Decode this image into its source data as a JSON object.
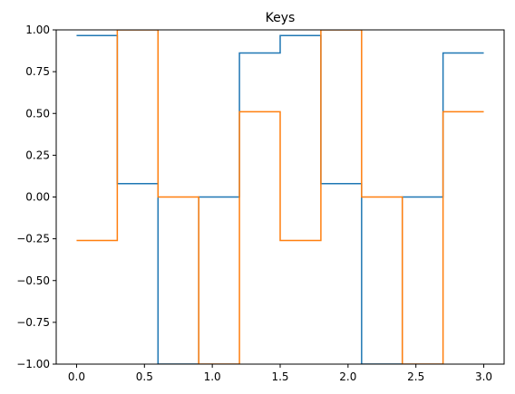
{
  "chart_data": {
    "type": "line",
    "step": "post",
    "title": "Keys",
    "xlabel": "",
    "ylabel": "",
    "xlim": [
      -0.15,
      3.15
    ],
    "ylim": [
      -1.0,
      1.0
    ],
    "grid": false,
    "x_ticks": [
      0.0,
      0.5,
      1.0,
      1.5,
      2.0,
      2.5,
      3.0
    ],
    "x_tick_labels": [
      "0.0",
      "0.5",
      "1.0",
      "1.5",
      "2.0",
      "2.5",
      "3.0"
    ],
    "y_ticks": [
      -1.0,
      -0.75,
      -0.5,
      -0.25,
      0.0,
      0.25,
      0.5,
      0.75,
      1.0
    ],
    "y_tick_labels": [
      "−1.00",
      "−0.75",
      "−0.50",
      "−0.25",
      "0.00",
      "0.25",
      "0.50",
      "0.75",
      "1.00"
    ],
    "x": [
      0.0,
      0.3,
      0.6,
      0.9,
      1.2,
      1.5,
      1.8,
      2.1,
      2.4,
      2.7,
      3.0
    ],
    "series": [
      {
        "color": "#1f77b4",
        "values": [
          0.966,
          0.08,
          -1.0,
          0.0,
          0.862,
          0.966,
          0.08,
          -1.0,
          0.0,
          0.862,
          0.862
        ]
      },
      {
        "color": "#ff7f0e",
        "values": [
          -0.26,
          1.0,
          0.0,
          -1.0,
          0.51,
          -0.26,
          1.0,
          0.0,
          -1.0,
          0.51,
          0.51
        ]
      }
    ]
  }
}
